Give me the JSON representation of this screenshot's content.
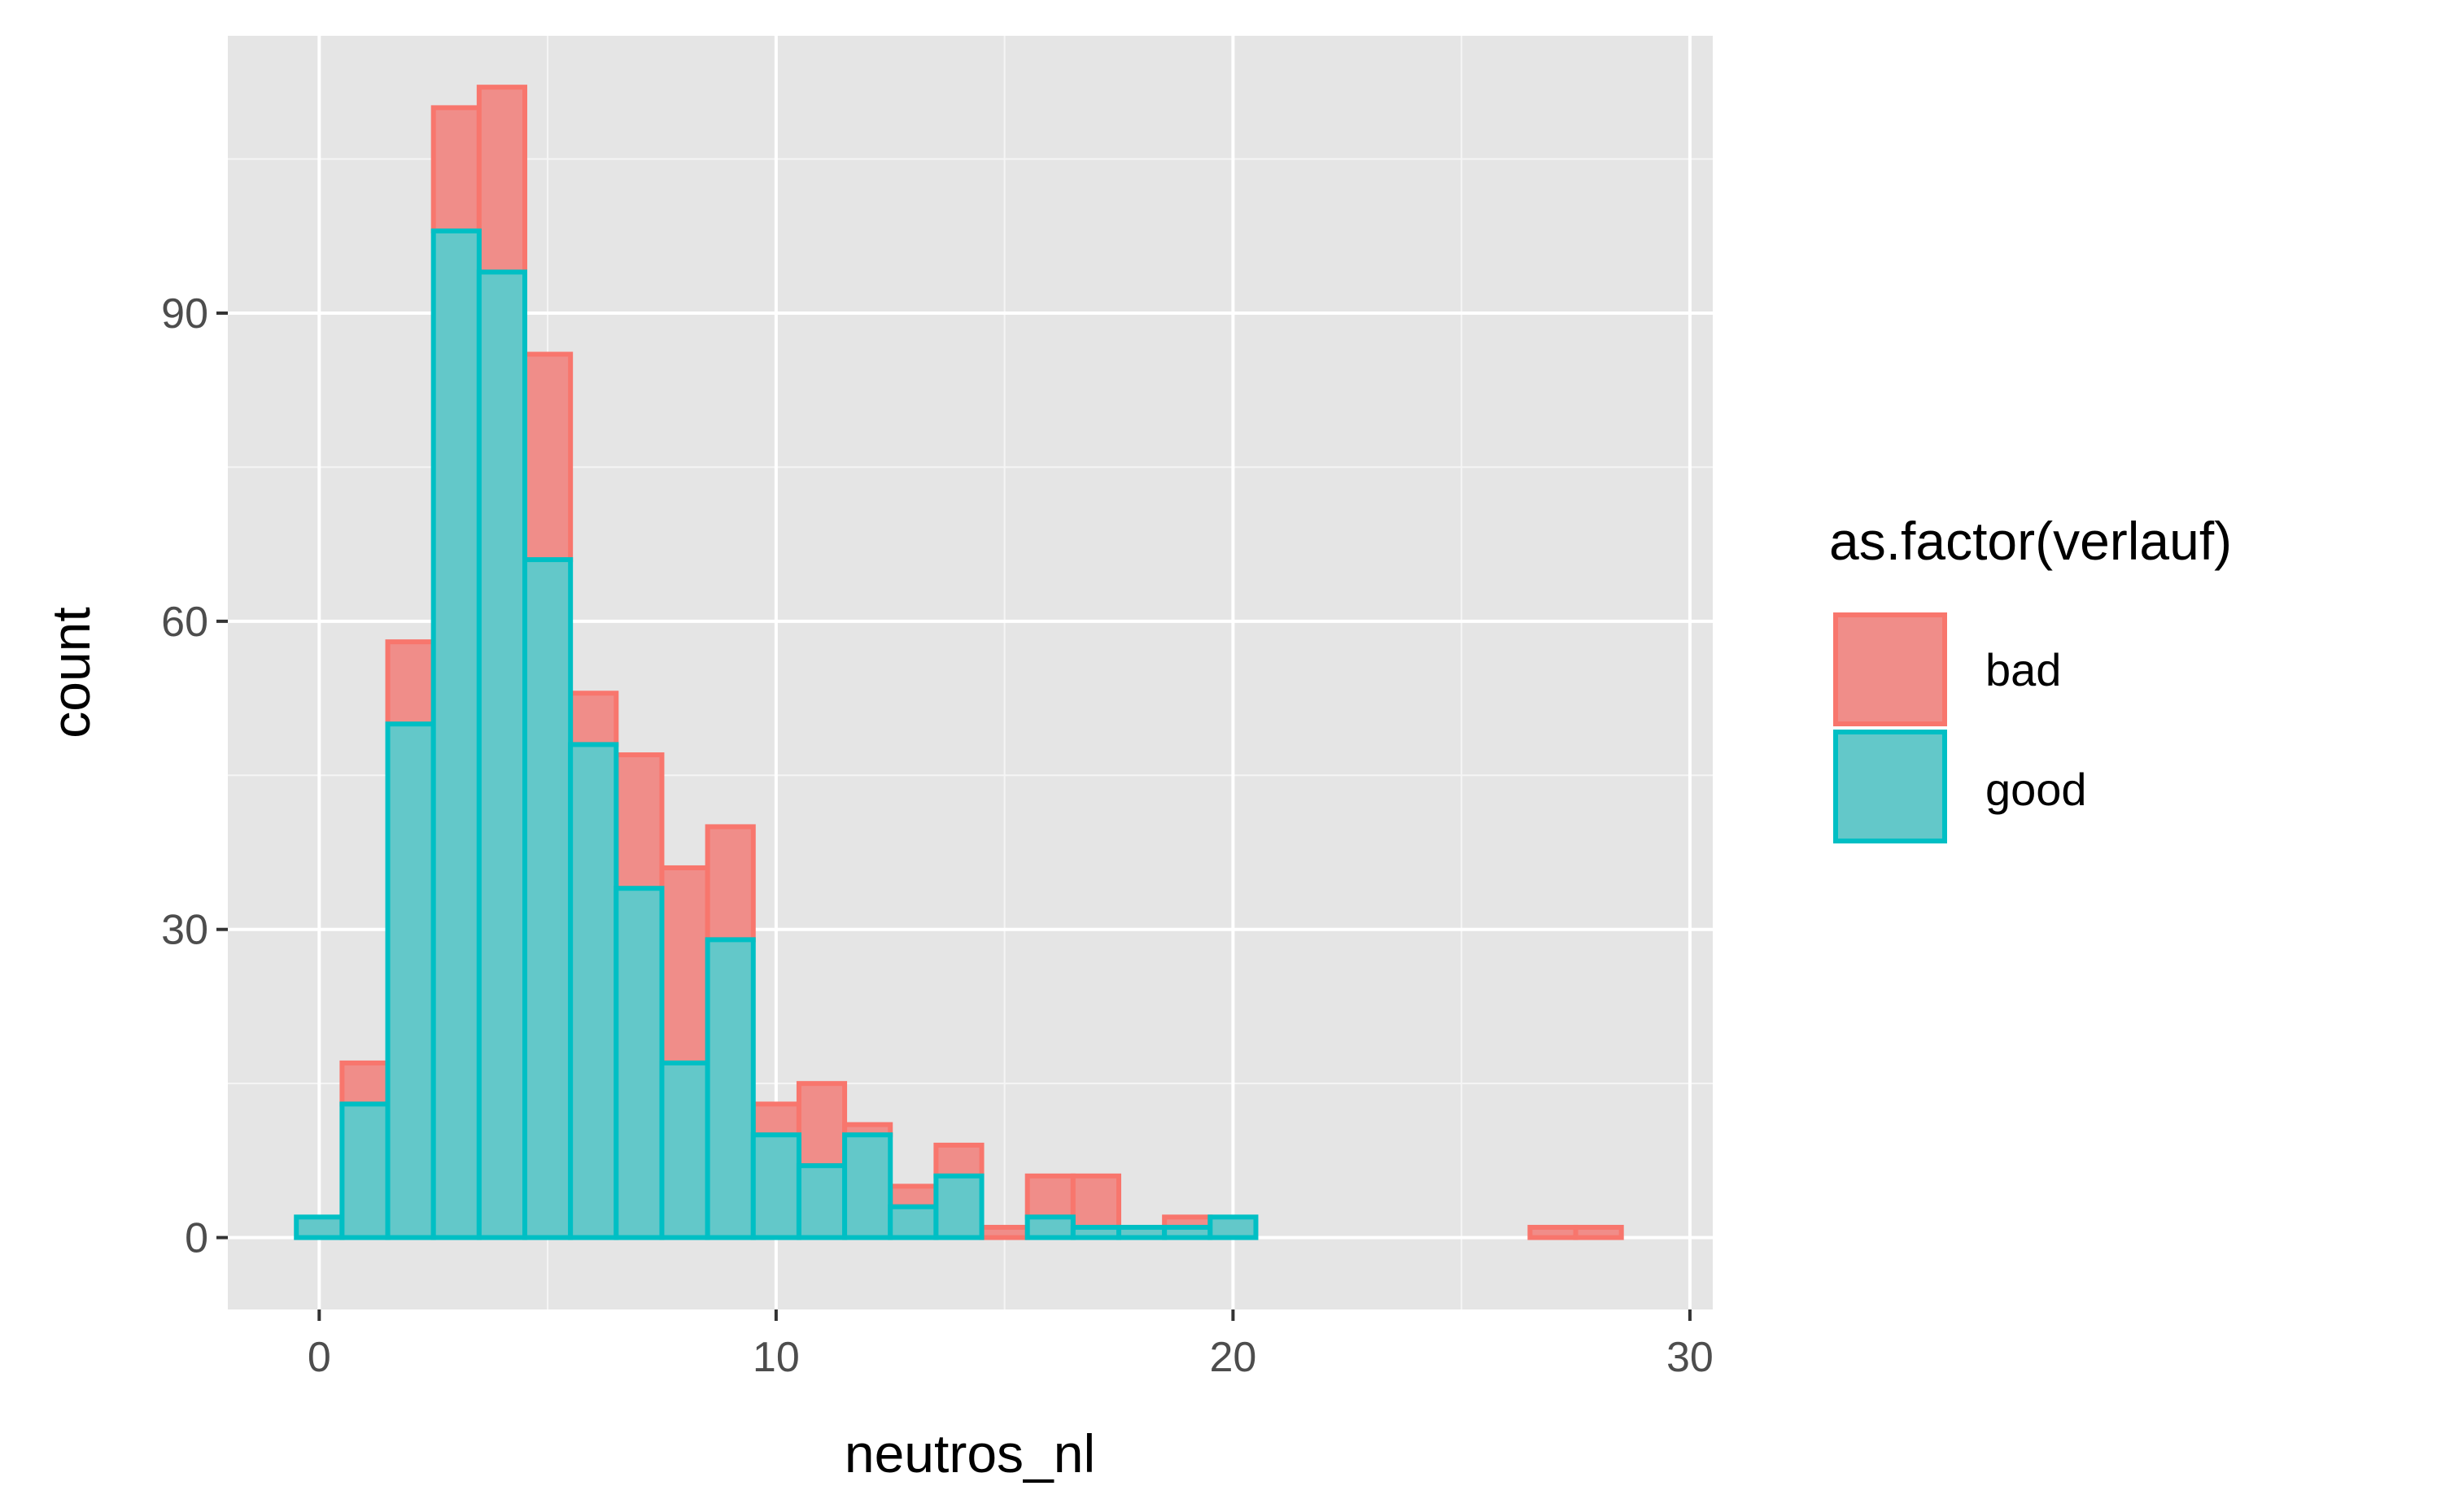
{
  "chart_data": {
    "type": "bar",
    "subtype": "histogram-stacked",
    "xlabel": "neutros_nl",
    "ylabel": "count",
    "xlim": [
      -2,
      30.5
    ],
    "ylim": [
      -7,
      117
    ],
    "x_ticks": [
      0,
      10,
      20,
      30
    ],
    "y_ticks": [
      0,
      30,
      60,
      90
    ],
    "x_tick_labels": [
      "0",
      "10",
      "20",
      "30"
    ],
    "y_tick_labels": [
      "0",
      "30",
      "60",
      "90"
    ],
    "grid": true,
    "legend_position": "right",
    "legend_title": "as.factor(verlauf)",
    "bin_width": 1,
    "bin_centers": [
      0,
      1,
      2,
      3,
      4,
      5,
      6,
      7,
      8,
      9,
      10,
      11,
      12,
      13,
      14,
      15,
      16,
      17,
      18,
      19,
      20,
      21,
      22,
      23,
      24,
      25,
      26,
      27,
      28
    ],
    "series": [
      {
        "name": "bad",
        "fill": "#f08d89",
        "stroke": "#f8766d",
        "values": [
          0,
          4,
          8,
          12,
          18,
          20,
          5,
          13,
          19,
          11,
          3,
          8,
          1,
          2,
          3,
          1,
          4,
          5,
          0,
          1,
          0,
          0,
          0,
          0,
          0,
          0,
          0,
          1,
          1
        ]
      },
      {
        "name": "good",
        "fill": "#63c8c9",
        "stroke": "#00bfc4",
        "values": [
          2,
          13,
          50,
          98,
          94,
          66,
          48,
          34,
          17,
          29,
          10,
          7,
          10,
          3,
          6,
          0,
          2,
          1,
          1,
          1,
          2,
          0,
          0,
          0,
          0,
          0,
          0,
          0,
          0
        ]
      }
    ]
  }
}
